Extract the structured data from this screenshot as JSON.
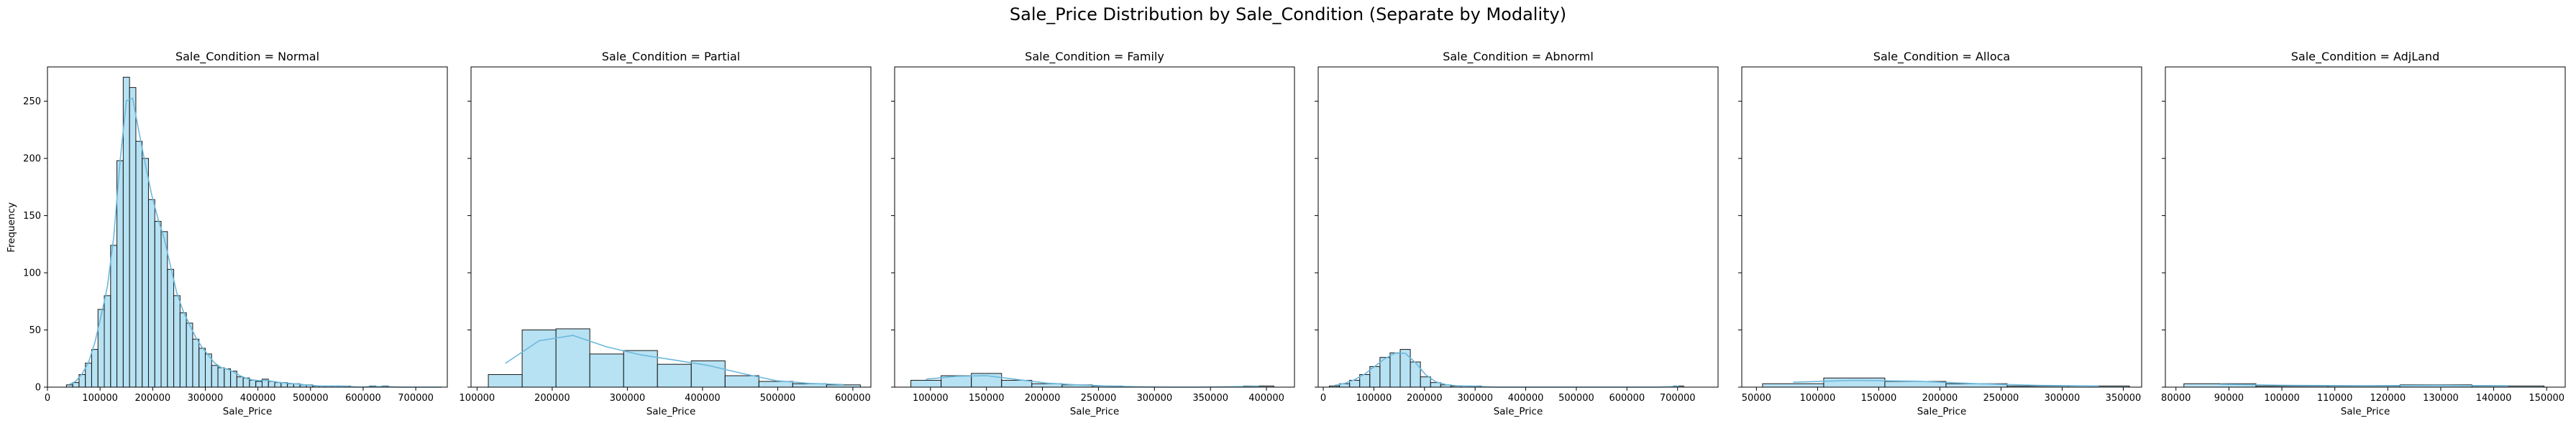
{
  "figure": {
    "title": "Sale_Price Distribution by Sale_Condition (Separate by Modality)",
    "shared_ylabel": "Frequency",
    "bar_color": "#87ceeb",
    "kde_color": "#6cb9dc",
    "edge_color": "#1a1a1a"
  },
  "chart_data": [
    {
      "type": "histogram",
      "title": "Sale_Condition = Normal",
      "xlabel": "Sale_Price",
      "ylabel": "Frequency",
      "xlim": [
        0,
        760000
      ],
      "ylim": [
        0,
        280
      ],
      "xticks": [
        0,
        100000,
        200000,
        300000,
        400000,
        500000,
        600000,
        700000
      ],
      "yticks": [
        0,
        50,
        100,
        150,
        200,
        250
      ],
      "bin_start": 36000,
      "bin_width": 12000,
      "counts": [
        2,
        4,
        11,
        21,
        33,
        68,
        80,
        124,
        198,
        271,
        262,
        215,
        200,
        164,
        145,
        136,
        103,
        80,
        65,
        56,
        42,
        34,
        29,
        19,
        17,
        16,
        14,
        9,
        8,
        6,
        5,
        7,
        5,
        4,
        4,
        3,
        3,
        2,
        2,
        1,
        1,
        1,
        1,
        1,
        1,
        0,
        0,
        0,
        1,
        0,
        1,
        0,
        0,
        0,
        0,
        0,
        0,
        0,
        0,
        0
      ]
    },
    {
      "type": "histogram",
      "title": "Sale_Condition = Partial",
      "xlabel": "Sale_Price",
      "xlim": [
        92000,
        624000
      ],
      "ylim": [
        0,
        280
      ],
      "xticks": [
        100000,
        200000,
        300000,
        400000,
        500000,
        600000
      ],
      "yticks": [
        0,
        50,
        100,
        150,
        200,
        250
      ],
      "bin_start": 115000,
      "bin_width": 45000,
      "counts": [
        11,
        50,
        51,
        29,
        32,
        20,
        23,
        10,
        5,
        3,
        2
      ]
    },
    {
      "type": "histogram",
      "title": "Sale_Condition = Family",
      "xlabel": "Sale_Price",
      "xlim": [
        68000,
        425000
      ],
      "ylim": [
        0,
        280
      ],
      "xticks": [
        100000,
        150000,
        200000,
        250000,
        300000,
        350000,
        400000
      ],
      "yticks": [
        0,
        50,
        100,
        150,
        200,
        250
      ],
      "bin_start": 82500,
      "bin_width": 27000,
      "counts": [
        6,
        10,
        12,
        6,
        3,
        2,
        1,
        0,
        0,
        0,
        0,
        1
      ]
    },
    {
      "type": "histogram",
      "title": "Sale_Condition = Abnorml",
      "xlabel": "Sale_Price",
      "xlim": [
        -10000,
        780000
      ],
      "ylim": [
        0,
        280
      ],
      "xticks": [
        0,
        100000,
        200000,
        300000,
        400000,
        500000,
        600000,
        700000
      ],
      "yticks": [
        0,
        50,
        100,
        150,
        200,
        250
      ],
      "bin_start": 12000,
      "bin_width": 20000,
      "counts": [
        1,
        3,
        6,
        11,
        18,
        26,
        30,
        33,
        22,
        9,
        4,
        2,
        1,
        1,
        1,
        0,
        0,
        0,
        0,
        0,
        0,
        0,
        0,
        0,
        0,
        0,
        0,
        0,
        0,
        0,
        0,
        0,
        0,
        0,
        1
      ]
    },
    {
      "type": "histogram",
      "title": "Sale_Condition = Alloca",
      "xlabel": "Sale_Price",
      "xlim": [
        38000,
        365000
      ],
      "ylim": [
        0,
        280
      ],
      "xticks": [
        50000,
        100000,
        150000,
        200000,
        250000,
        300000,
        350000
      ],
      "yticks": [
        0,
        50,
        100,
        150,
        200,
        250
      ],
      "bin_start": 55000,
      "bin_width": 50000,
      "counts": [
        3,
        8,
        5,
        3,
        1,
        1
      ]
    },
    {
      "type": "histogram",
      "title": "Sale_Condition = AdjLand",
      "xlabel": "Sale_Price",
      "xlim": [
        78000,
        153500
      ],
      "ylim": [
        0,
        280
      ],
      "xticks": [
        80000,
        90000,
        100000,
        110000,
        120000,
        130000,
        140000,
        150000
      ],
      "yticks": [
        0,
        50,
        100,
        150,
        200,
        250
      ],
      "bin_start": 81500,
      "bin_width": 13600,
      "counts": [
        3,
        1,
        1,
        2,
        1
      ]
    }
  ]
}
